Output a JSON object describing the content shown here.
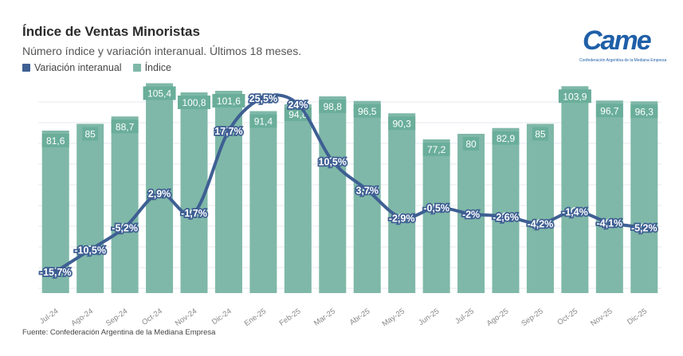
{
  "title": "Índice de Ventas Minoristas",
  "subtitle": "Número índice y variación interanual. Últimos 18 meses.",
  "logo": {
    "word": "Came",
    "tagline": "Confederación Argentina de la Mediana Empresa"
  },
  "source": "Fuente: Confederación Argentina de la Mediana Empresa",
  "colors": {
    "bar": "#7fb8a8",
    "bar_label_bg": "#6aae9a",
    "line": "#3e5f93",
    "grid": "#e6e9ee",
    "axis_text": "#888888"
  },
  "chart_data": {
    "type": "bar",
    "categories": [
      "Jul-24",
      "Ago-24",
      "Sep-24",
      "Oct-24",
      "Nov-24",
      "Dic-24",
      "Ene-25",
      "Feb-25",
      "Mar-25",
      "Abr-25",
      "May-25",
      "Jun-25",
      "Jul-25",
      "Ago-25",
      "Sep-25",
      "Oct-25",
      "Nov-25",
      "Dic-25"
    ],
    "series": [
      {
        "name": "Índice",
        "type": "bar",
        "values": [
          81.6,
          85,
          88.7,
          105.4,
          100.8,
          101.6,
          91.4,
          94.8,
          98.8,
          96.5,
          90.3,
          77.2,
          80,
          82.9,
          85,
          103.9,
          96.7,
          96.3
        ],
        "labels": [
          "81,6",
          "85",
          "88,7",
          "105,4",
          "100,8",
          "101,6",
          "91,4",
          "94,8",
          "98,8",
          "96,5",
          "90,3",
          "77,2",
          "80",
          "82,9",
          "85",
          "103,9",
          "96,7",
          "96,3"
        ]
      },
      {
        "name": "Variación interanual",
        "type": "line",
        "values": [
          -15.7,
          -10.5,
          -5.2,
          2.9,
          -1.7,
          17.7,
          25.5,
          24,
          10.5,
          3.7,
          -2.9,
          -0.5,
          -2,
          -2.6,
          -4.2,
          -1.4,
          -4.1,
          -5.2
        ],
        "labels": [
          "-15,7%",
          "-10,5%",
          "-5,2%",
          "2,9%",
          "-1,7%",
          "17,7%",
          "25,5%",
          "24%",
          "10,5%",
          "3,7%",
          "-2,9%",
          "-0,5%",
          "-2%",
          "-2,6%",
          "-4,2%",
          "-1,4%",
          "-4,1%",
          "-5,2%"
        ]
      }
    ],
    "grid": true,
    "legend_position": "top-left"
  }
}
